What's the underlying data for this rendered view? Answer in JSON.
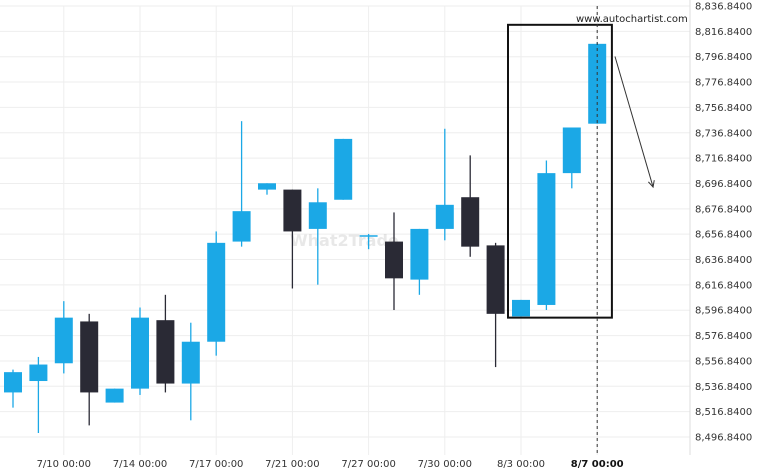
{
  "chart_data": {
    "type": "candlestick",
    "title": "",
    "xlabel": "",
    "ylabel": "",
    "ylim": [
      8486.84,
      8836.84
    ],
    "y_ticks": [
      "8,836.8400",
      "8,816.8400",
      "8,796.8400",
      "8,776.8400",
      "8,756.8400",
      "8,736.8400",
      "8,716.8400",
      "8,696.8400",
      "8,676.8400",
      "8,656.8400",
      "8,636.8400",
      "8,616.8400",
      "8,596.8400",
      "8,576.8400",
      "8,556.8400",
      "8,536.8400",
      "8,516.8400",
      "8,496.8400"
    ],
    "y_tick_values": [
      8836.84,
      8816.84,
      8796.84,
      8776.84,
      8756.84,
      8736.84,
      8716.84,
      8696.84,
      8676.84,
      8656.84,
      8636.84,
      8616.84,
      8596.84,
      8576.84,
      8556.84,
      8536.84,
      8516.84,
      8496.84
    ],
    "x_ticks": [
      {
        "label": "7/10 00:00",
        "index": 2
      },
      {
        "label": "7/14 00:00",
        "index": 5
      },
      {
        "label": "7/17 00:00",
        "index": 8
      },
      {
        "label": "7/21 00:00",
        "index": 11
      },
      {
        "label": "7/27 00:00",
        "index": 14
      },
      {
        "label": "7/30 00:00",
        "index": 17
      },
      {
        "label": "8/3 00:00",
        "index": 20
      },
      {
        "label": "8/7 00:00",
        "index": 23,
        "bold": true
      }
    ],
    "bull_color": "#1ba8e6",
    "bear_color": "#2a2a35",
    "grid": true,
    "candles": [
      {
        "o": 8532,
        "h": 8550,
        "l": 8520,
        "c": 8548
      },
      {
        "o": 8541,
        "h": 8560,
        "l": 8500,
        "c": 8554
      },
      {
        "o": 8555,
        "h": 8604,
        "l": 8547,
        "c": 8591
      },
      {
        "o": 8588,
        "h": 8594,
        "l": 8506,
        "c": 8532
      },
      {
        "o": 8524,
        "h": 8535,
        "l": 8524,
        "c": 8535
      },
      {
        "o": 8535,
        "h": 8599,
        "l": 8530,
        "c": 8591
      },
      {
        "o": 8589,
        "h": 8609,
        "l": 8532,
        "c": 8539
      },
      {
        "o": 8539,
        "h": 8587,
        "l": 8510,
        "c": 8572
      },
      {
        "o": 8572,
        "h": 8659,
        "l": 8561,
        "c": 8650
      },
      {
        "o": 8651,
        "h": 8746,
        "l": 8647,
        "c": 8675
      },
      {
        "o": 8692,
        "h": 8697,
        "l": 8688,
        "c": 8697
      },
      {
        "o": 8692,
        "h": 8692,
        "l": 8614,
        "c": 8659
      },
      {
        "o": 8661,
        "h": 8693,
        "l": 8617,
        "c": 8682
      },
      {
        "o": 8684,
        "h": 8732,
        "l": 8684,
        "c": 8732
      },
      {
        "o": 8656,
        "h": 8657,
        "l": 8645,
        "c": 8656
      },
      {
        "o": 8651,
        "h": 8674,
        "l": 8597,
        "c": 8622
      },
      {
        "o": 8621,
        "h": 8661,
        "l": 8609,
        "c": 8661
      },
      {
        "o": 8661,
        "h": 8740,
        "l": 8652,
        "c": 8680
      },
      {
        "o": 8686,
        "h": 8719,
        "l": 8639,
        "c": 8647
      },
      {
        "o": 8648,
        "h": 8650,
        "l": 8552,
        "c": 8594
      },
      {
        "o": 8592,
        "h": 8605,
        "l": 8592,
        "c": 8605
      },
      {
        "o": 8601,
        "h": 8715,
        "l": 8597,
        "c": 8705
      },
      {
        "o": 8705,
        "h": 8741,
        "l": 8693,
        "c": 8741
      },
      {
        "o": 8744,
        "h": 8808,
        "l": 8744,
        "c": 8807
      }
    ]
  },
  "overlay": {
    "site": "www.autochartist.com",
    "watermark": "What2Trade",
    "pattern_box": {
      "from_index": 20,
      "to_index": 23.5,
      "top": 8822,
      "bottom": 8591
    },
    "forecast_arrow": {
      "from": [
        23.7,
        8797
      ],
      "to": [
        25.2,
        8694
      ]
    }
  }
}
